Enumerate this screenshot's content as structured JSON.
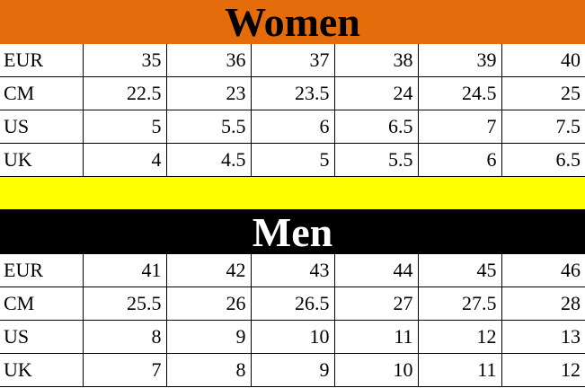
{
  "women": {
    "title": "Women",
    "color": "#E46C0A",
    "rows": [
      {
        "label": "EUR",
        "values": [
          "35",
          "36",
          "37",
          "38",
          "39",
          "40"
        ]
      },
      {
        "label": "CM",
        "values": [
          "22.5",
          "23",
          "23.5",
          "24",
          "24.5",
          "25"
        ]
      },
      {
        "label": "US",
        "values": [
          "5",
          "5.5",
          "6",
          "6.5",
          "7",
          "7.5"
        ]
      },
      {
        "label": "UK",
        "values": [
          "4",
          "4.5",
          "5",
          "5.5",
          "6",
          "6.5"
        ]
      }
    ]
  },
  "separator_color": "#FFFF00",
  "men": {
    "title": "Men",
    "color": "#000000",
    "rows": [
      {
        "label": "EUR",
        "values": [
          "41",
          "42",
          "43",
          "44",
          "45",
          "46"
        ]
      },
      {
        "label": "CM",
        "values": [
          "25.5",
          "26",
          "26.5",
          "27",
          "27.5",
          "28"
        ]
      },
      {
        "label": "US",
        "values": [
          "8",
          "9",
          "10",
          "11",
          "12",
          "13"
        ]
      },
      {
        "label": "UK",
        "values": [
          "7",
          "8",
          "9",
          "10",
          "11",
          "12"
        ]
      }
    ]
  }
}
